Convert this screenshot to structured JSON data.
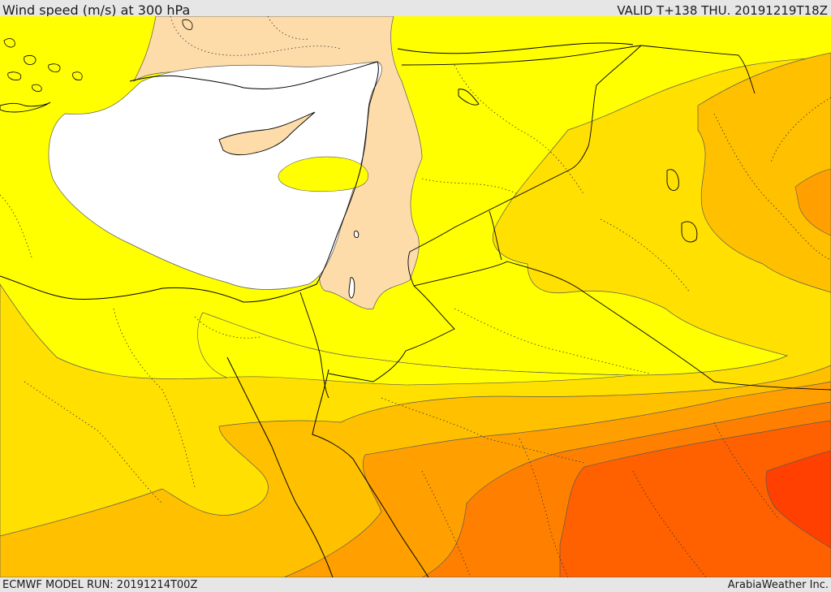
{
  "header": {
    "title": "Wind speed (m/s) at 300 hPa",
    "valid_time": "VALID T+138 THU. 20191219T18Z"
  },
  "footer": {
    "model_run": "ECMWF MODEL RUN: 20191214T00Z",
    "credit": "ArabiaWeather Inc."
  },
  "map": {
    "variable": "wind speed",
    "units": "m/s",
    "pressure_level_hpa": 300,
    "colors": {
      "white": "#ffffff",
      "peach": "#fddcaa",
      "yellow": "#ffff00",
      "gold": "#ffe000",
      "amber": "#ffc000",
      "orange": "#ffa000",
      "dark_orange": "#ff8000",
      "red_orange": "#ff6000",
      "red": "#ff4000",
      "contour_line": "#5a5a5a",
      "border_line": "#000000"
    }
  }
}
